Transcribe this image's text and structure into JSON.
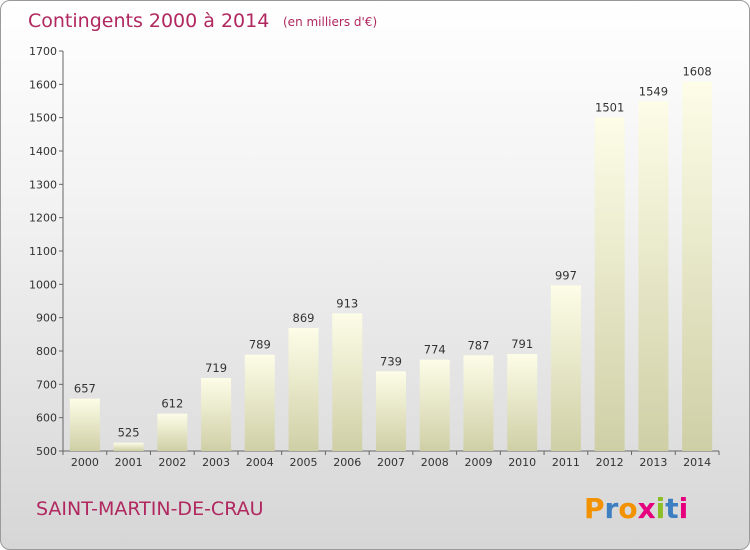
{
  "header": {
    "title": "Contingents 2000 à 2014",
    "subtitle": "(en milliers d'€)"
  },
  "footer": {
    "commune": "SAINT-MARTIN-DE-CRAU",
    "logo_text": "Proxiti"
  },
  "colors": {
    "title": "#b0285f",
    "bar_top": "#fdfde8",
    "bar_bottom": "#cfcfa6",
    "axis": "#666666",
    "logo_letters": [
      "#f29200",
      "#3d7fc1",
      "#f29200",
      "#e6007e",
      "#8cbf26",
      "#3d7fc1",
      "#e6007e"
    ]
  },
  "chart_data": {
    "type": "bar",
    "title": "Contingents 2000 à 2014",
    "subtitle": "(en milliers d'€)",
    "xlabel": "",
    "ylabel": "",
    "categories": [
      "2000",
      "2001",
      "2002",
      "2003",
      "2004",
      "2005",
      "2006",
      "2007",
      "2008",
      "2009",
      "2010",
      "2011",
      "2012",
      "2013",
      "2014"
    ],
    "values": [
      657,
      525,
      612,
      719,
      789,
      869,
      913,
      739,
      774,
      787,
      791,
      997,
      1501,
      1549,
      1608
    ],
    "ylim": [
      500,
      1700
    ],
    "yticks": [
      500,
      600,
      700,
      800,
      900,
      1000,
      1100,
      1200,
      1300,
      1400,
      1500,
      1600,
      1700
    ],
    "grid": false,
    "legend": "none"
  }
}
